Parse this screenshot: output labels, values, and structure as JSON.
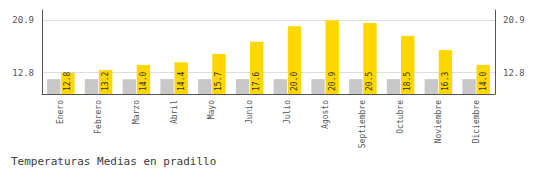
{
  "chart_data": {
    "type": "bar",
    "title": "Temperaturas Medias en pradillo",
    "categories": [
      "Enero",
      "Febrero",
      "Marzo",
      "Abril",
      "Mayo",
      "Junio",
      "Julio",
      "Agosto",
      "Septiembre",
      "Octubre",
      "Noviembre",
      "Diciembre"
    ],
    "series": [
      {
        "color": "#C8C8C8",
        "values": [
          11.8,
          11.8,
          11.8,
          11.8,
          11.8,
          11.8,
          11.8,
          11.8,
          11.8,
          11.8,
          11.8,
          11.8
        ]
      },
      {
        "color": "#FFD700",
        "values": [
          12.8,
          13.2,
          14.0,
          14.4,
          15.7,
          17.6,
          20.0,
          20.9,
          20.5,
          18.5,
          16.3,
          14.0
        ],
        "value_labels": [
          "12.8",
          "13.2",
          "14.0",
          "14.4",
          "15.7",
          "17.6",
          "20.0",
          "20.9",
          "20.5",
          "18.5",
          "16.3",
          "14.0"
        ],
        "data_labels": true
      }
    ],
    "ylim": [
      9.5,
      22.5
    ],
    "yticks": [
      12.8,
      20.9
    ],
    "y2lim": [
      9.5,
      22.5
    ],
    "y2ticks": [
      12.8,
      20.9
    ],
    "grid": true
  }
}
